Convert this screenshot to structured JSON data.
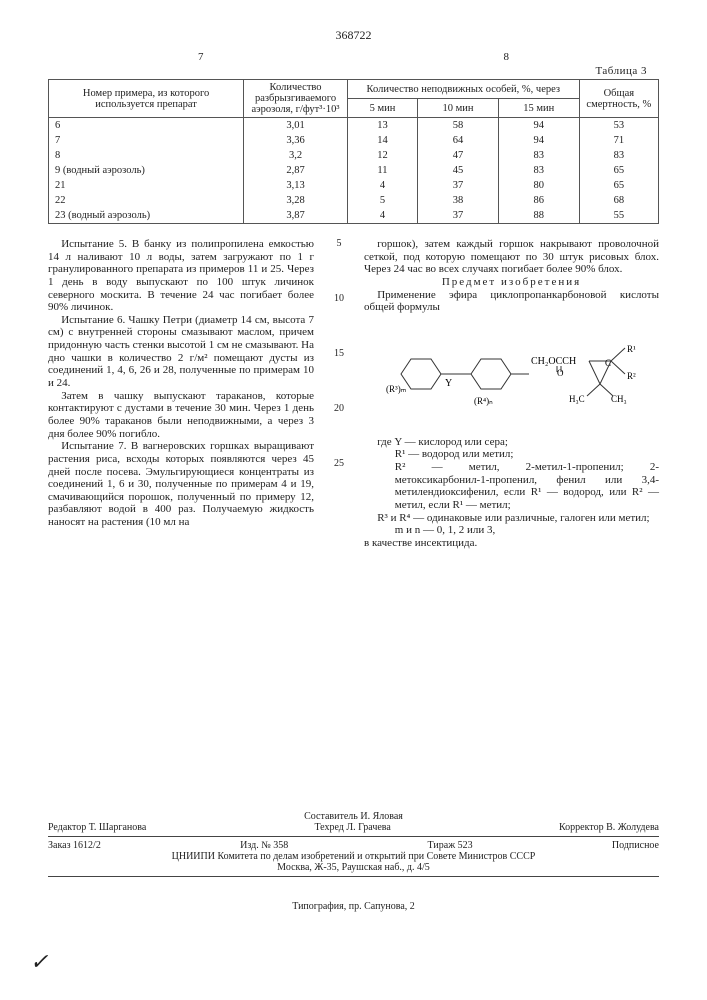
{
  "document_number": "368722",
  "col7": "7",
  "col8": "8",
  "table_label": "Таблица 3",
  "table": {
    "h_col1": "Номер примера, из которого используется препарат",
    "h_col2": "Количество разбрызгиваемого аэрозоля, г/фут³·10³",
    "h_group": "Количество неподвижных особей, %, через",
    "h_5min": "5 мин",
    "h_10min": "10 мин",
    "h_15min": "15 мин",
    "h_mort": "Общая смертность, %",
    "rows": [
      {
        "ex": "6",
        "amt": "3,01",
        "m5": "13",
        "m10": "58",
        "m15": "94",
        "mort": "53"
      },
      {
        "ex": "7",
        "amt": "3,36",
        "m5": "14",
        "m10": "64",
        "m15": "94",
        "mort": "71"
      },
      {
        "ex": "8",
        "amt": "3,2",
        "m5": "12",
        "m10": "47",
        "m15": "83",
        "mort": "83"
      },
      {
        "ex": "9 (водный аэрозоль)",
        "amt": "2,87",
        "m5": "11",
        "m10": "45",
        "m15": "83",
        "mort": "65"
      },
      {
        "ex": "21",
        "amt": "3,13",
        "m5": "4",
        "m10": "37",
        "m15": "80",
        "mort": "65"
      },
      {
        "ex": "22",
        "amt": "3,28",
        "m5": "5",
        "m10": "38",
        "m15": "86",
        "mort": "68"
      },
      {
        "ex": "23 (водный аэрозоль)",
        "amt": "3,87",
        "m5": "4",
        "m10": "37",
        "m15": "88",
        "mort": "55"
      }
    ]
  },
  "left": {
    "p1": "Испытание 5. В банку из полипропилена емкостью 14 л наливают 10 л воды, затем загружают по 1 г гранулированного препарата из примеров 11 и 25. Через 1 день в воду выпускают по 100 штук личинок северного москита. В течение 24 час погибает более 90% личинок.",
    "p2": "Испытание 6. Чашку Петри (диаметр 14 см, высота 7 см) с внутренней стороны смазывают маслом, причем придонную часть стенки высотой 1 см не смазывают. На дно чашки в количество 2 г/м² помещают дусты из соединений 1, 4, 6, 26 и 28, полученные по примерам 10 и 24.",
    "p3": "Затем в чашку выпускают тараканов, которые контактируют с дустами в течение 30 мин. Через 1 день более 90% тараканов были неподвижными, а через 3 дня более 90% погибло.",
    "p4": "Испытание 7. В вагнеровских горшках выращивают растения риса, всходы которых появляются через 45 дней после посева. Эмульгирующиеся концентраты из соединений 1, 6 и 30, полученные по примерам 4 и 19, смачивающийся порошок, полученный по примеру 12, разбавляют водой в 400 раз. Получаемую жидкость наносят на растения (10 мл на"
  },
  "right": {
    "p1": "горшок), затем каждый горшок накрывают проволочной сеткой, под которую помещают по 30 штук рисовых блох. Через 24 час во всех случаях погибает более 90% блох.",
    "subject_head": "Предмет изобретения",
    "p2": "Применение эфира циклопропанкарбоновой кислоты общей формулы",
    "where0": "где Y — кислород или сера;",
    "where1": "R¹ — водород или метил;",
    "where2": "R² — метил, 2-метил-1-пропенил; 2-метоксикарбонил-1-пропенил, фенил или 3,4-метилендиоксифенил, если R¹ — водород, или R² — метил, если R¹ — метил;",
    "where3": "R³ и R⁴ — одинаковые или различные, галоген или метил;",
    "where4": "m и n — 0, 1, 2 или 3,",
    "p3": "в качестве инсектицида."
  },
  "linenums": {
    "l5": "5",
    "l10": "10",
    "l15": "15",
    "l20": "20",
    "l25": "25"
  },
  "formula": {
    "left_phenyl1": "(R³)ₘ",
    "left_phenyl2": "(R⁴)ₙ",
    "link": "Y",
    "right_top": "CH₂OCCH",
    "right_o": "O",
    "right_c": "C",
    "right_r1": "R¹",
    "right_r2": "R²",
    "right_ch3a": "H₃C",
    "right_ch3b": "CH₃"
  },
  "footer": {
    "compiler": "Составитель И. Яловая",
    "editor": "Редактор Т. Шарганова",
    "techred": "Техред Л. Грачева",
    "corrector": "Корректор В. Жолудева",
    "order": "Заказ 1612/2",
    "izd": "Изд. № 358",
    "tirazh": "Тираж 523",
    "podpis": "Подписное",
    "org1": "ЦНИИПИ Комитета по делам изобретений и открытий при Совете Министров СССР",
    "org2": "Москва, Ж-35, Раушская наб., д. 4/5",
    "typog": "Типография, пр. Сапунова, 2"
  },
  "mark": "✓"
}
